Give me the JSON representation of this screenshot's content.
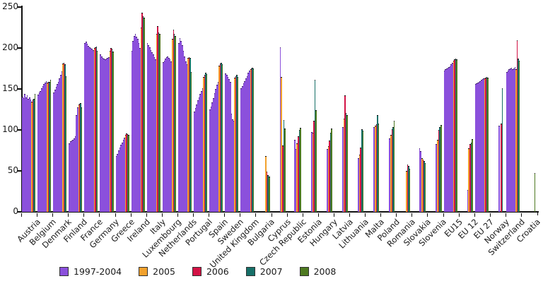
{
  "chart_data": {
    "type": "bar",
    "title": "",
    "xlabel": "",
    "ylabel": "",
    "ylim": [
      0,
      250
    ],
    "yticks": [
      0,
      50,
      100,
      150,
      200,
      250
    ],
    "grid": false,
    "legend_position": "bottom-left",
    "series_meta": [
      {
        "key": "y1997_2004",
        "label": "1997-2004",
        "color": "#8b50dc"
      },
      {
        "key": "y2005",
        "label": "2005",
        "color": "#f2a12d"
      },
      {
        "key": "y2006",
        "label": "2006",
        "color": "#d31245"
      },
      {
        "key": "y2007",
        "label": "2007",
        "color": "#166f68"
      },
      {
        "key": "y2008",
        "label": "2008",
        "color": "#4e7a21"
      }
    ],
    "countries": [
      {
        "name": "Austria",
        "y1997_2004": [
          140,
          138,
          143,
          139,
          141,
          137,
          139,
          136
        ],
        "y2005": 134,
        "y2006": 136,
        "y2007": 137,
        "y2008": 143
      },
      {
        "name": "Belgium",
        "y1997_2004": [
          142,
          145,
          147,
          150,
          153,
          155,
          157,
          159
        ],
        "y2005": 157,
        "y2006": 158,
        "y2007": 158,
        "y2008": 160
      },
      {
        "name": "Denmark",
        "y1997_2004": [
          145,
          148,
          152,
          155,
          158,
          162,
          166,
          171
        ],
        "y2005": 180,
        "y2006": 181,
        "y2007": 179,
        "y2008": 165
      },
      {
        "name": "Finland",
        "y1997_2004": [
          83,
          85,
          86,
          87,
          89,
          91,
          117,
          127
        ],
        "y2005": 130,
        "y2006": 131,
        "y2007": 132,
        "y2008": 127
      },
      {
        "name": "France",
        "y1997_2004": [
          205,
          207,
          204,
          202,
          200,
          199,
          198,
          197
        ],
        "y2005": 199,
        "y2006": 200,
        "y2007": 201,
        "y2008": 196
      },
      {
        "name": "Germany",
        "y1997_2004": [
          191,
          189,
          187,
          186,
          185,
          186,
          187,
          188
        ],
        "y2005": 196,
        "y2006": 199,
        "y2007": 198,
        "y2008": 195
      },
      {
        "name": "Greece",
        "y1997_2004": [
          67,
          70,
          74,
          78,
          81,
          84,
          87,
          90
        ],
        "y2005": 93,
        "y2006": 95,
        "y2007": 94,
        "y2008": 93
      },
      {
        "name": "Ireland",
        "y1997_2004": [
          196,
          208,
          214,
          216,
          213,
          210,
          205,
          199
        ],
        "y2005": 224,
        "y2006": 242,
        "y2007": 238,
        "y2008": 236
      },
      {
        "name": "Italy",
        "y1997_2004": [
          205,
          203,
          200,
          197,
          194,
          191,
          188,
          185
        ],
        "y2005": 216,
        "y2006": 226,
        "y2007": 218,
        "y2008": 216
      },
      {
        "name": "Luxembourg",
        "y1997_2004": [
          182,
          184,
          186,
          188,
          189,
          187,
          185,
          183
        ],
        "y2005": 210,
        "y2006": 222,
        "y2007": 216,
        "y2008": 214
      },
      {
        "name": "Netherlands",
        "y1997_2004": [
          205,
          211,
          208,
          203,
          196,
          189,
          183,
          179
        ],
        "y2005": 187,
        "y2006": 188,
        "y2007": 187,
        "y2008": 170
      },
      {
        "name": "Portugal",
        "y1997_2004": [
          122,
          126,
          130,
          135,
          139,
          143,
          147,
          150
        ],
        "y2005": 164,
        "y2006": 166,
        "y2007": 169,
        "y2008": 167
      },
      {
        "name": "Spain",
        "y1997_2004": [
          124,
          128,
          133,
          138,
          144,
          149,
          154,
          158
        ],
        "y2005": 178,
        "y2006": 180,
        "y2007": 181,
        "y2008": 179
      },
      {
        "name": "Sweden",
        "y1997_2004": [
          168,
          166,
          164,
          161,
          158,
          119,
          112,
          110
        ],
        "y2005": 163,
        "y2006": 165,
        "y2007": 166,
        "y2008": 164
      },
      {
        "name": "United Kingdom",
        "y1997_2004": [
          150,
          153,
          156,
          159,
          162,
          165,
          169,
          172
        ],
        "y2005": 173,
        "y2006": 174,
        "y2007": 175,
        "y2008": 174
      },
      {
        "name": "Bulgaria",
        "y1997_2004": [],
        "y2005": 67,
        "y2006": 48,
        "y2007": 44,
        "y2008": 42
      },
      {
        "name": "Cyprus",
        "y1997_2004": [
          null,
          null,
          null,
          null,
          null,
          null,
          null,
          200
        ],
        "y2005": 164,
        "y2006": 80,
        "y2007": 111,
        "y2008": 101
      },
      {
        "name": "Czech Republic",
        "y1997_2004": [
          null,
          null,
          null,
          null,
          null,
          null,
          87,
          76
        ],
        "y2005": 83,
        "y2006": 91,
        "y2007": 99,
        "y2008": 102
      },
      {
        "name": "Estonia",
        "y1997_2004": [
          null,
          null,
          null,
          null,
          null,
          null,
          null,
          97
        ],
        "y2005": 96,
        "y2006": 110,
        "y2007": 160,
        "y2008": 123
      },
      {
        "name": "Hungary",
        "y1997_2004": [
          null,
          null,
          null,
          null,
          null,
          null,
          null,
          76
        ],
        "y2005": 79,
        "y2006": 86,
        "y2007": 96,
        "y2008": 101
      },
      {
        "name": "Latvia",
        "y1997_2004": [
          null,
          null,
          null,
          null,
          null,
          null,
          null,
          103
        ],
        "y2005": 113,
        "y2006": 141,
        "y2007": 120,
        "y2008": 117
      },
      {
        "name": "Lithuania",
        "y1997_2004": [
          null,
          null,
          null,
          null,
          null,
          null,
          null,
          65
        ],
        "y2005": 69,
        "y2006": 78,
        "y2007": 100,
        "y2008": 98
      },
      {
        "name": "Malta",
        "y1997_2004": [
          null,
          null,
          null,
          null,
          null,
          null,
          null,
          103
        ],
        "y2005": 104,
        "y2006": 106,
        "y2007": 117,
        "y2008": 107
      },
      {
        "name": "Poland",
        "y1997_2004": [
          null,
          null,
          null,
          null,
          null,
          null,
          null,
          89
        ],
        "y2005": 93,
        "y2006": 100,
        "y2007": 103,
        "y2008": 110
      },
      {
        "name": "Romania",
        "y1997_2004": [],
        "y2005": 49,
        "y2006": 57,
        "y2007": 55,
        "y2008": 52
      },
      {
        "name": "Slovakia",
        "y1997_2004": [
          null,
          null,
          null,
          null,
          null,
          null,
          77,
          73
        ],
        "y2005": 65,
        "y2006": 63,
        "y2007": 61,
        "y2008": 59
      },
      {
        "name": "Slovenia",
        "y1997_2004": [
          null,
          null,
          null,
          null,
          null,
          null,
          null,
          82
        ],
        "y2005": 87,
        "y2006": 99,
        "y2007": 103,
        "y2008": 105
      },
      {
        "name": "EU15",
        "y1997_2004": [
          172,
          173,
          174,
          175,
          176,
          177,
          179,
          181
        ],
        "y2005": 184,
        "y2006": 185,
        "y2007": 186,
        "y2008": 185
      },
      {
        "name": "EU 12",
        "y1997_2004": [
          null,
          null,
          null,
          null,
          null,
          null,
          null,
          26
        ],
        "y2005": 77,
        "y2006": 82,
        "y2007": 84,
        "y2008": 88
      },
      {
        "name": "EU 27",
        "y1997_2004": [
          155,
          156,
          157,
          158,
          159,
          160,
          161,
          162
        ],
        "y2005": 162,
        "y2006": 163,
        "y2007": 164,
        "y2008": 163
      },
      {
        "name": "Norway",
        "y1997_2004": [
          null,
          null,
          null,
          null,
          null,
          null,
          null,
          104
        ],
        "y2005": null,
        "y2006": 107,
        "y2007": 150,
        "y2008": null
      },
      {
        "name": "Switzerland",
        "y1997_2004": [
          170,
          172,
          173,
          174,
          175,
          173,
          174,
          176
        ],
        "y2005": 173,
        "y2006": 209,
        "y2007": 186,
        "y2008": 184
      },
      {
        "name": "Croatia",
        "y1997_2004": [],
        "y2005": null,
        "y2006": null,
        "y2007": null,
        "y2008": 47
      }
    ]
  }
}
